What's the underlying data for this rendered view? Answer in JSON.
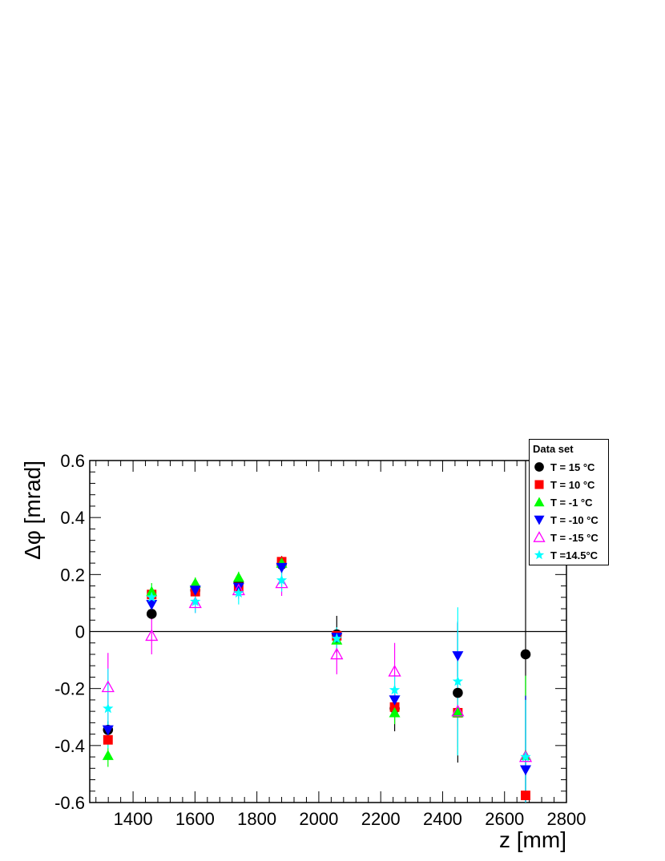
{
  "chart_data": {
    "type": "scatter",
    "title": "",
    "xlabel": "z [mm]",
    "ylabel": "Δφ [mrad]",
    "xlim": [
      1260,
      2800
    ],
    "ylim": [
      -0.6,
      0.6
    ],
    "xticks": [
      "1400",
      "1600",
      "1800",
      "2000",
      "2200",
      "2400",
      "2600",
      "2800"
    ],
    "yticks": [
      "-0.6",
      "-0.4",
      "-0.2",
      "0",
      "0.2",
      "0.4",
      "0.6"
    ],
    "legend_title": "Data set",
    "legend_position": "top-right",
    "series": [
      {
        "name": "T = 15 °C",
        "color": "#000000",
        "marker": "circle",
        "x": [
          1319,
          1460,
          1601,
          1741,
          1880,
          2058,
          2245,
          2449,
          2668
        ],
        "y": [
          -0.345,
          0.062,
          0.145,
          0.172,
          0.235,
          -0.01,
          -0.27,
          -0.215,
          -0.08
        ],
        "err": [
          0.03,
          0.02,
          0.03,
          0.02,
          0.03,
          0.065,
          0.08,
          0.245,
          0.77
        ]
      },
      {
        "name": "T = 10 °C",
        "color": "#ff0000",
        "marker": "square",
        "x": [
          1319,
          1460,
          1601,
          1741,
          1880,
          2058,
          2245,
          2449,
          2668
        ],
        "y": [
          -0.38,
          0.13,
          0.14,
          0.155,
          0.245,
          -0.015,
          -0.265,
          -0.285,
          -0.575
        ],
        "err": [
          0.02,
          0.02,
          0.02,
          0.02,
          0.02,
          0.02,
          0.03,
          0.05,
          0.02
        ]
      },
      {
        "name": "T = -1 °C",
        "color": "#00ff00",
        "marker": "triangle-up",
        "x": [
          1319,
          1460,
          1601,
          1741,
          1880,
          2058,
          2245,
          2449,
          2668
        ],
        "y": [
          -0.435,
          0.14,
          0.17,
          0.19,
          0.24,
          -0.03,
          -0.285,
          -0.285,
          -0.435
        ],
        "err": [
          0.04,
          0.03,
          0.02,
          0.02,
          0.02,
          0.03,
          0.04,
          0.12,
          0.28
        ]
      },
      {
        "name": "T = -10 °C",
        "color": "#0000ff",
        "marker": "triangle-down",
        "x": [
          1319,
          1460,
          1601,
          1741,
          1880,
          2058,
          2245,
          2449,
          2668
        ],
        "y": [
          -0.345,
          0.095,
          0.145,
          0.155,
          0.225,
          -0.02,
          -0.24,
          -0.085,
          -0.485
        ],
        "err": [
          0.03,
          0.02,
          0.02,
          0.02,
          0.02,
          0.02,
          0.03,
          0.12,
          0.26
        ]
      },
      {
        "name": "T = -15 °C",
        "color": "#ff00ff",
        "marker": "triangle-up-open",
        "x": [
          1319,
          1460,
          1601,
          1741,
          1880,
          2058,
          2245,
          2449,
          2668
        ],
        "y": [
          -0.195,
          -0.015,
          0.1,
          0.145,
          0.17,
          -0.08,
          -0.14,
          -0.28,
          -0.44
        ],
        "err": [
          0.12,
          0.065,
          0.035,
          0.03,
          0.045,
          0.07,
          0.1,
          0.12,
          0.2
        ]
      },
      {
        "name": "T =14.5°C",
        "color": "#00ffff",
        "marker": "star",
        "x": [
          1319,
          1460,
          1601,
          1741,
          1880,
          2058,
          2245,
          2449,
          2668
        ],
        "y": [
          -0.27,
          0.12,
          0.105,
          0.135,
          0.18,
          -0.025,
          -0.205,
          -0.175,
          -0.44
        ],
        "err": [
          0.14,
          0.04,
          0.04,
          0.04,
          0.04,
          0.04,
          0.05,
          0.26,
          0.2
        ]
      }
    ]
  }
}
